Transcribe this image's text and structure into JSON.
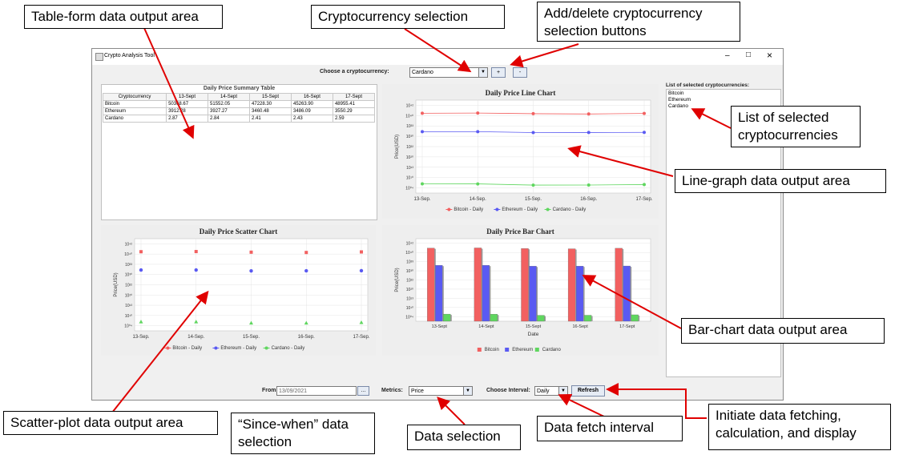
{
  "callouts": {
    "table_area": "Table-form data output area",
    "crypto_selection": "Cryptocurrency selection",
    "add_delete": "Add/delete cryptocurrency selection buttons",
    "list_selected": "List of selected cryptocurrencies",
    "line_area": "Line-graph data output area",
    "bar_area": "Bar-chart data output area",
    "scatter_area": "Scatter-plot data output area",
    "since_when": "“Since-when” data selection",
    "data_selection": "Data selection",
    "fetch_interval": "Data fetch interval",
    "initiate": "Initiate data fetching, calculation, and display"
  },
  "window": {
    "title": "Crypto Analysis Tool",
    "minimize": "–",
    "maximize": "□",
    "close": "×"
  },
  "top": {
    "choose_label": "Choose a cryptocurrency:",
    "selected": "Cardano",
    "add": "+",
    "remove": "-"
  },
  "table": {
    "title": "Daily Price Summary Table",
    "headers": [
      "Cryptocurrency",
      "13-Sept",
      "14-Sept",
      "15-Sept",
      "16-Sept",
      "17-Sept"
    ],
    "rows": [
      [
        "Bitcoin",
        "50368.67",
        "51552.05",
        "47228.30",
        "45263.90",
        "48955.41"
      ],
      [
        "Ethereum",
        "3912.28",
        "3927.27",
        "3460.48",
        "3486.09",
        "3550.29"
      ],
      [
        "Cardano",
        "2.87",
        "2.84",
        "2.41",
        "2.43",
        "2.59"
      ]
    ]
  },
  "selected_list": {
    "title": "List of selected cryptocurrencies:",
    "items": [
      "Bitcoin",
      "Ethereum",
      "Cardano"
    ]
  },
  "bottom": {
    "from_label": "From",
    "from_value": "13/09/2021",
    "date_btn": "...",
    "metrics_label": "Metrics:",
    "metrics_value": "Price",
    "interval_label": "Choose Interval:",
    "interval_value": "Daily",
    "refresh": "Refresh"
  },
  "colors": {
    "bitcoin": "#f26060",
    "ethereum": "#5a5af2",
    "cardano": "#5fd65f"
  },
  "chart_data": [
    {
      "type": "line",
      "title": "Daily Price Line Chart",
      "xlabel": "",
      "ylabel": "Price(USD)",
      "categories": [
        "13-Sep.",
        "14-Sep.",
        "15-Sep.",
        "16-Sep.",
        "17-Sep."
      ],
      "y_ticks": [
        "10⁴²",
        "10⁴⁰",
        "10³³",
        "10³⁰",
        "10²²",
        "10²⁰",
        "10¹³",
        "10¹⁰",
        "10⁰⁴"
      ],
      "series": [
        {
          "name": "Bitcoin - Daily",
          "values": [
            50368.67,
            51552.05,
            47228.3,
            45263.9,
            48955.41
          ]
        },
        {
          "name": "Ethereum - Daily",
          "values": [
            3912.28,
            3927.27,
            3460.48,
            3486.09,
            3550.29
          ]
        },
        {
          "name": "Cardano - Daily",
          "values": [
            2.87,
            2.84,
            2.41,
            2.43,
            2.59
          ]
        }
      ]
    },
    {
      "type": "scatter",
      "title": "Daily Price Scatter Chart",
      "xlabel": "",
      "ylabel": "Price(USD)",
      "categories": [
        "13-Sep.",
        "14-Sep.",
        "15-Sep.",
        "16-Sep.",
        "17-Sep."
      ],
      "y_ticks": [
        "10⁴²",
        "10⁴⁰",
        "10³³",
        "10³⁰",
        "10²²",
        "10²⁰",
        "10¹³",
        "10¹⁰",
        "10⁰⁴"
      ],
      "series": [
        {
          "name": "Bitcoin - Daily",
          "values": [
            50368.67,
            51552.05,
            47228.3,
            45263.9,
            48955.41
          ]
        },
        {
          "name": "Ethereum - Daily",
          "values": [
            3912.28,
            3927.27,
            3460.48,
            3486.09,
            3550.29
          ]
        },
        {
          "name": "Cardano - Daily",
          "values": [
            2.87,
            2.84,
            2.41,
            2.43,
            2.59
          ]
        }
      ]
    },
    {
      "type": "bar",
      "title": "Daily Price Bar Chart",
      "xlabel": "Date",
      "ylabel": "Price(USD)",
      "categories": [
        "13-Sept",
        "14-Sept",
        "15-Sept",
        "16-Sept",
        "17-Sept"
      ],
      "y_ticks": [
        "10⁴²",
        "10⁴⁰",
        "10³³",
        "10³⁰",
        "10²²",
        "10²⁰",
        "10¹³",
        "10¹⁰",
        "10⁰⁴"
      ],
      "series": [
        {
          "name": "Bitcoin",
          "values": [
            50368.67,
            51552.05,
            47228.3,
            45263.9,
            48955.41
          ]
        },
        {
          "name": "Ethereum",
          "values": [
            3912.28,
            3927.27,
            3460.48,
            3486.09,
            3550.29
          ]
        },
        {
          "name": "Cardano",
          "values": [
            2.87,
            2.84,
            2.41,
            2.43,
            2.59
          ]
        }
      ]
    }
  ]
}
